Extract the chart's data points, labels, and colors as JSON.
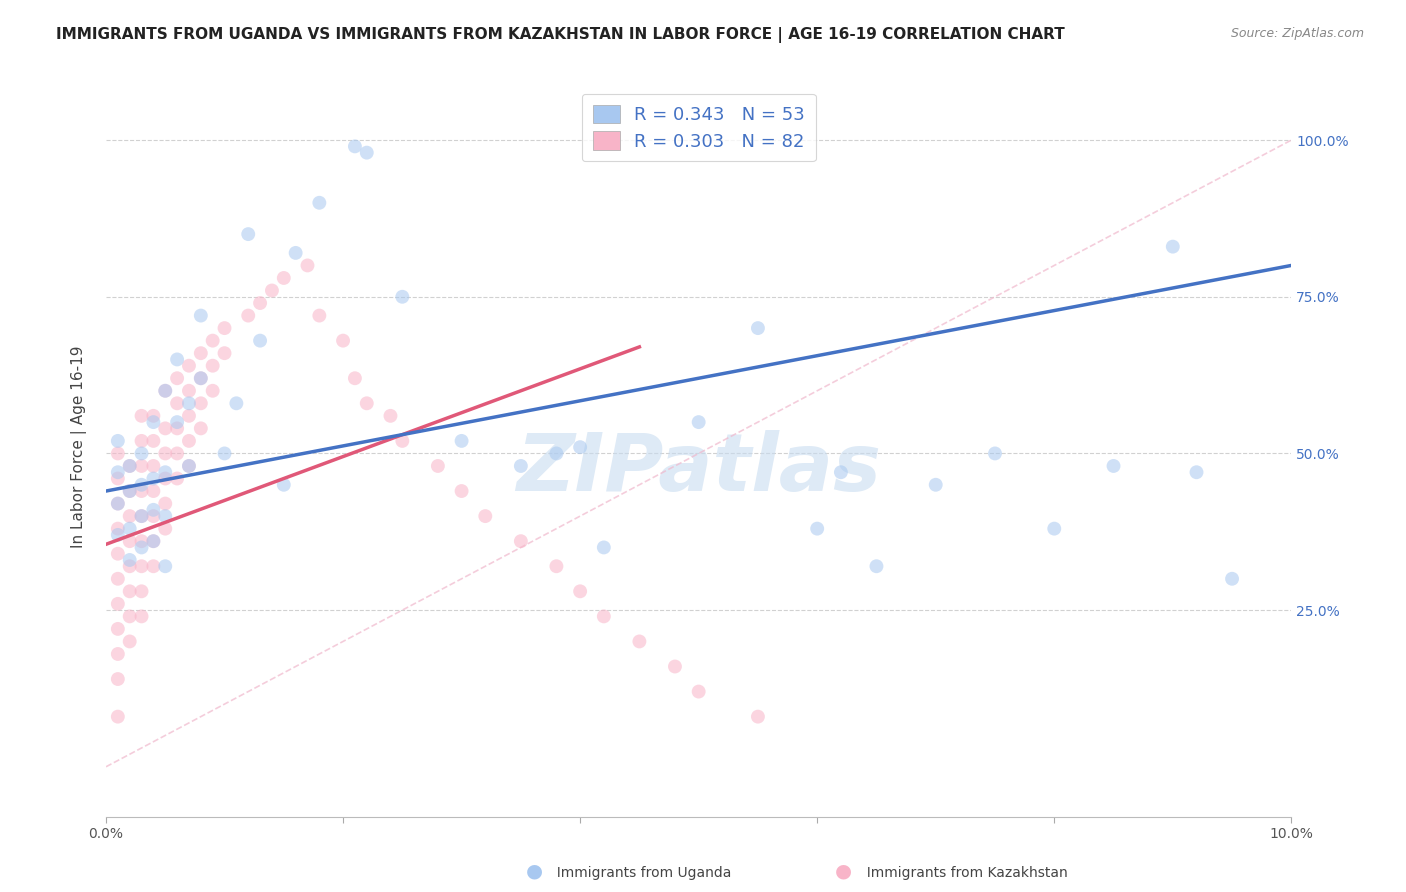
{
  "title": "IMMIGRANTS FROM UGANDA VS IMMIGRANTS FROM KAZAKHSTAN IN LABOR FORCE | AGE 16-19 CORRELATION CHART",
  "source": "Source: ZipAtlas.com",
  "ylabel": "In Labor Force | Age 16-19",
  "y_ticks_right": [
    "25.0%",
    "50.0%",
    "75.0%",
    "100.0%"
  ],
  "y_ticks_right_values": [
    0.25,
    0.5,
    0.75,
    1.0
  ],
  "legend_r1": "0.343",
  "legend_n1": "53",
  "legend_r2": "0.303",
  "legend_n2": "82",
  "color_uganda": "#A8C8F0",
  "color_kazakhstan": "#F8B4C8",
  "color_uganda_line": "#4472C4",
  "color_kazakhstan_line": "#E05878",
  "color_diag": "#F0B8CC",
  "color_legend_text": "#4472C4",
  "xlim": [
    0.0,
    0.1
  ],
  "ylim": [
    -0.08,
    1.1
  ],
  "watermark_text": "ZIPatlas",
  "watermark_color": "#C8DCF0",
  "background_color": "#FFFFFF",
  "grid_color": "#CCCCCC",
  "title_fontsize": 11,
  "axis_label_fontsize": 11,
  "tick_fontsize": 10,
  "legend_fontsize": 13,
  "marker_size": 100,
  "marker_alpha": 0.55,
  "uganda_line_x0": 0.0,
  "uganda_line_x1": 0.1,
  "uganda_line_y0": 0.44,
  "uganda_line_y1": 0.8,
  "kazakhstan_line_x0": 0.0,
  "kazakhstan_line_x1": 0.045,
  "kazakhstan_line_y0": 0.355,
  "kazakhstan_line_y1": 0.67,
  "diag_line_x0": 0.0,
  "diag_line_x1": 0.1,
  "diag_line_y0": 0.0,
  "diag_line_y1": 1.0,
  "uganda_x": [
    0.001,
    0.001,
    0.001,
    0.001,
    0.002,
    0.002,
    0.002,
    0.002,
    0.003,
    0.003,
    0.003,
    0.003,
    0.004,
    0.004,
    0.004,
    0.004,
    0.005,
    0.005,
    0.005,
    0.005,
    0.006,
    0.006,
    0.007,
    0.007,
    0.008,
    0.008,
    0.01,
    0.011,
    0.012,
    0.013,
    0.015,
    0.016,
    0.018,
    0.021,
    0.022,
    0.025,
    0.03,
    0.035,
    0.038,
    0.04,
    0.042,
    0.05,
    0.055,
    0.06,
    0.062,
    0.065,
    0.07,
    0.075,
    0.08,
    0.085,
    0.09,
    0.092,
    0.095
  ],
  "uganda_y": [
    0.42,
    0.47,
    0.52,
    0.37,
    0.44,
    0.48,
    0.38,
    0.33,
    0.45,
    0.5,
    0.4,
    0.35,
    0.46,
    0.55,
    0.41,
    0.36,
    0.6,
    0.47,
    0.4,
    0.32,
    0.65,
    0.55,
    0.58,
    0.48,
    0.72,
    0.62,
    0.5,
    0.58,
    0.85,
    0.68,
    0.45,
    0.82,
    0.9,
    0.99,
    0.98,
    0.75,
    0.52,
    0.48,
    0.5,
    0.51,
    0.35,
    0.55,
    0.7,
    0.38,
    0.47,
    0.32,
    0.45,
    0.5,
    0.38,
    0.48,
    0.83,
    0.47,
    0.3
  ],
  "kazakhstan_x": [
    0.001,
    0.001,
    0.001,
    0.001,
    0.001,
    0.001,
    0.001,
    0.001,
    0.001,
    0.001,
    0.001,
    0.002,
    0.002,
    0.002,
    0.002,
    0.002,
    0.002,
    0.002,
    0.002,
    0.003,
    0.003,
    0.003,
    0.003,
    0.003,
    0.003,
    0.003,
    0.003,
    0.003,
    0.004,
    0.004,
    0.004,
    0.004,
    0.004,
    0.004,
    0.004,
    0.005,
    0.005,
    0.005,
    0.005,
    0.005,
    0.005,
    0.006,
    0.006,
    0.006,
    0.006,
    0.006,
    0.007,
    0.007,
    0.007,
    0.007,
    0.007,
    0.008,
    0.008,
    0.008,
    0.008,
    0.009,
    0.009,
    0.009,
    0.01,
    0.01,
    0.012,
    0.013,
    0.014,
    0.015,
    0.017,
    0.018,
    0.02,
    0.021,
    0.022,
    0.024,
    0.025,
    0.028,
    0.03,
    0.032,
    0.035,
    0.038,
    0.04,
    0.042,
    0.045,
    0.048,
    0.05,
    0.055
  ],
  "kazakhstan_y": [
    0.42,
    0.46,
    0.5,
    0.38,
    0.34,
    0.3,
    0.26,
    0.22,
    0.18,
    0.14,
    0.08,
    0.48,
    0.44,
    0.4,
    0.36,
    0.32,
    0.28,
    0.24,
    0.2,
    0.52,
    0.56,
    0.48,
    0.44,
    0.4,
    0.36,
    0.32,
    0.28,
    0.24,
    0.56,
    0.52,
    0.48,
    0.44,
    0.4,
    0.36,
    0.32,
    0.6,
    0.54,
    0.5,
    0.46,
    0.42,
    0.38,
    0.62,
    0.58,
    0.54,
    0.5,
    0.46,
    0.64,
    0.6,
    0.56,
    0.52,
    0.48,
    0.66,
    0.62,
    0.58,
    0.54,
    0.68,
    0.64,
    0.6,
    0.7,
    0.66,
    0.72,
    0.74,
    0.76,
    0.78,
    0.8,
    0.72,
    0.68,
    0.62,
    0.58,
    0.56,
    0.52,
    0.48,
    0.44,
    0.4,
    0.36,
    0.32,
    0.28,
    0.24,
    0.2,
    0.16,
    0.12,
    0.08
  ]
}
